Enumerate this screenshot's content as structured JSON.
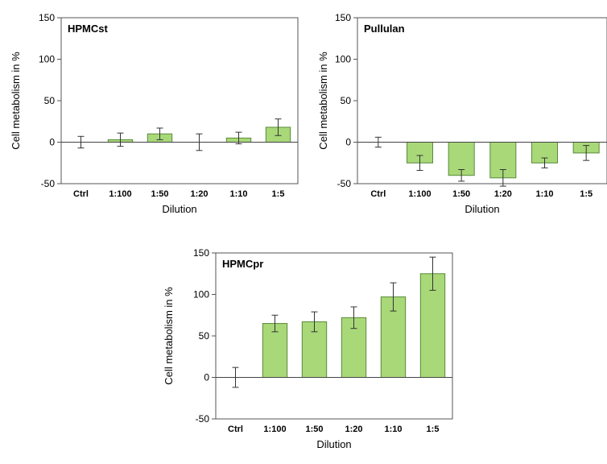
{
  "chart_data": [
    {
      "type": "bar",
      "title": "HPMCst",
      "xlabel": "Dilution",
      "ylabel": "Cell metabolism in %",
      "categories": [
        "Ctrl",
        "1:100",
        "1:50",
        "1:20",
        "1:10",
        "1:5"
      ],
      "values": [
        0,
        3,
        10,
        0,
        5,
        18
      ],
      "errors": [
        7,
        8,
        7,
        10,
        7,
        10
      ],
      "ylim": [
        -50,
        150
      ],
      "yticks": [
        -50,
        0,
        50,
        100,
        150
      ],
      "grid": false,
      "bar_color": "#a8d878",
      "bar_stroke": "#5a8a3a"
    },
    {
      "type": "bar",
      "title": "Pullulan",
      "xlabel": "Dilution",
      "ylabel": "Cell metabolism in %",
      "categories": [
        "Ctrl",
        "1:100",
        "1:50",
        "1:20",
        "1:10",
        "1:5"
      ],
      "values": [
        0,
        -25,
        -40,
        -43,
        -25,
        -13
      ],
      "errors": [
        6,
        9,
        7,
        10,
        6,
        9
      ],
      "ylim": [
        -50,
        150
      ],
      "yticks": [
        -50,
        0,
        50,
        100,
        150
      ],
      "grid": false,
      "bar_color": "#a8d878",
      "bar_stroke": "#5a8a3a"
    },
    {
      "type": "bar",
      "title": "HPMCpr",
      "xlabel": "Dilution",
      "ylabel": "Cell metabolism in %",
      "categories": [
        "Ctrl",
        "1:100",
        "1:50",
        "1:20",
        "1:10",
        "1:5"
      ],
      "values": [
        0,
        65,
        67,
        72,
        97,
        125
      ],
      "errors": [
        12,
        10,
        12,
        13,
        17,
        20
      ],
      "ylim": [
        -50,
        150
      ],
      "yticks": [
        -50,
        0,
        50,
        100,
        150
      ],
      "grid": false,
      "bar_color": "#a8d878",
      "bar_stroke": "#5a8a3a"
    }
  ]
}
